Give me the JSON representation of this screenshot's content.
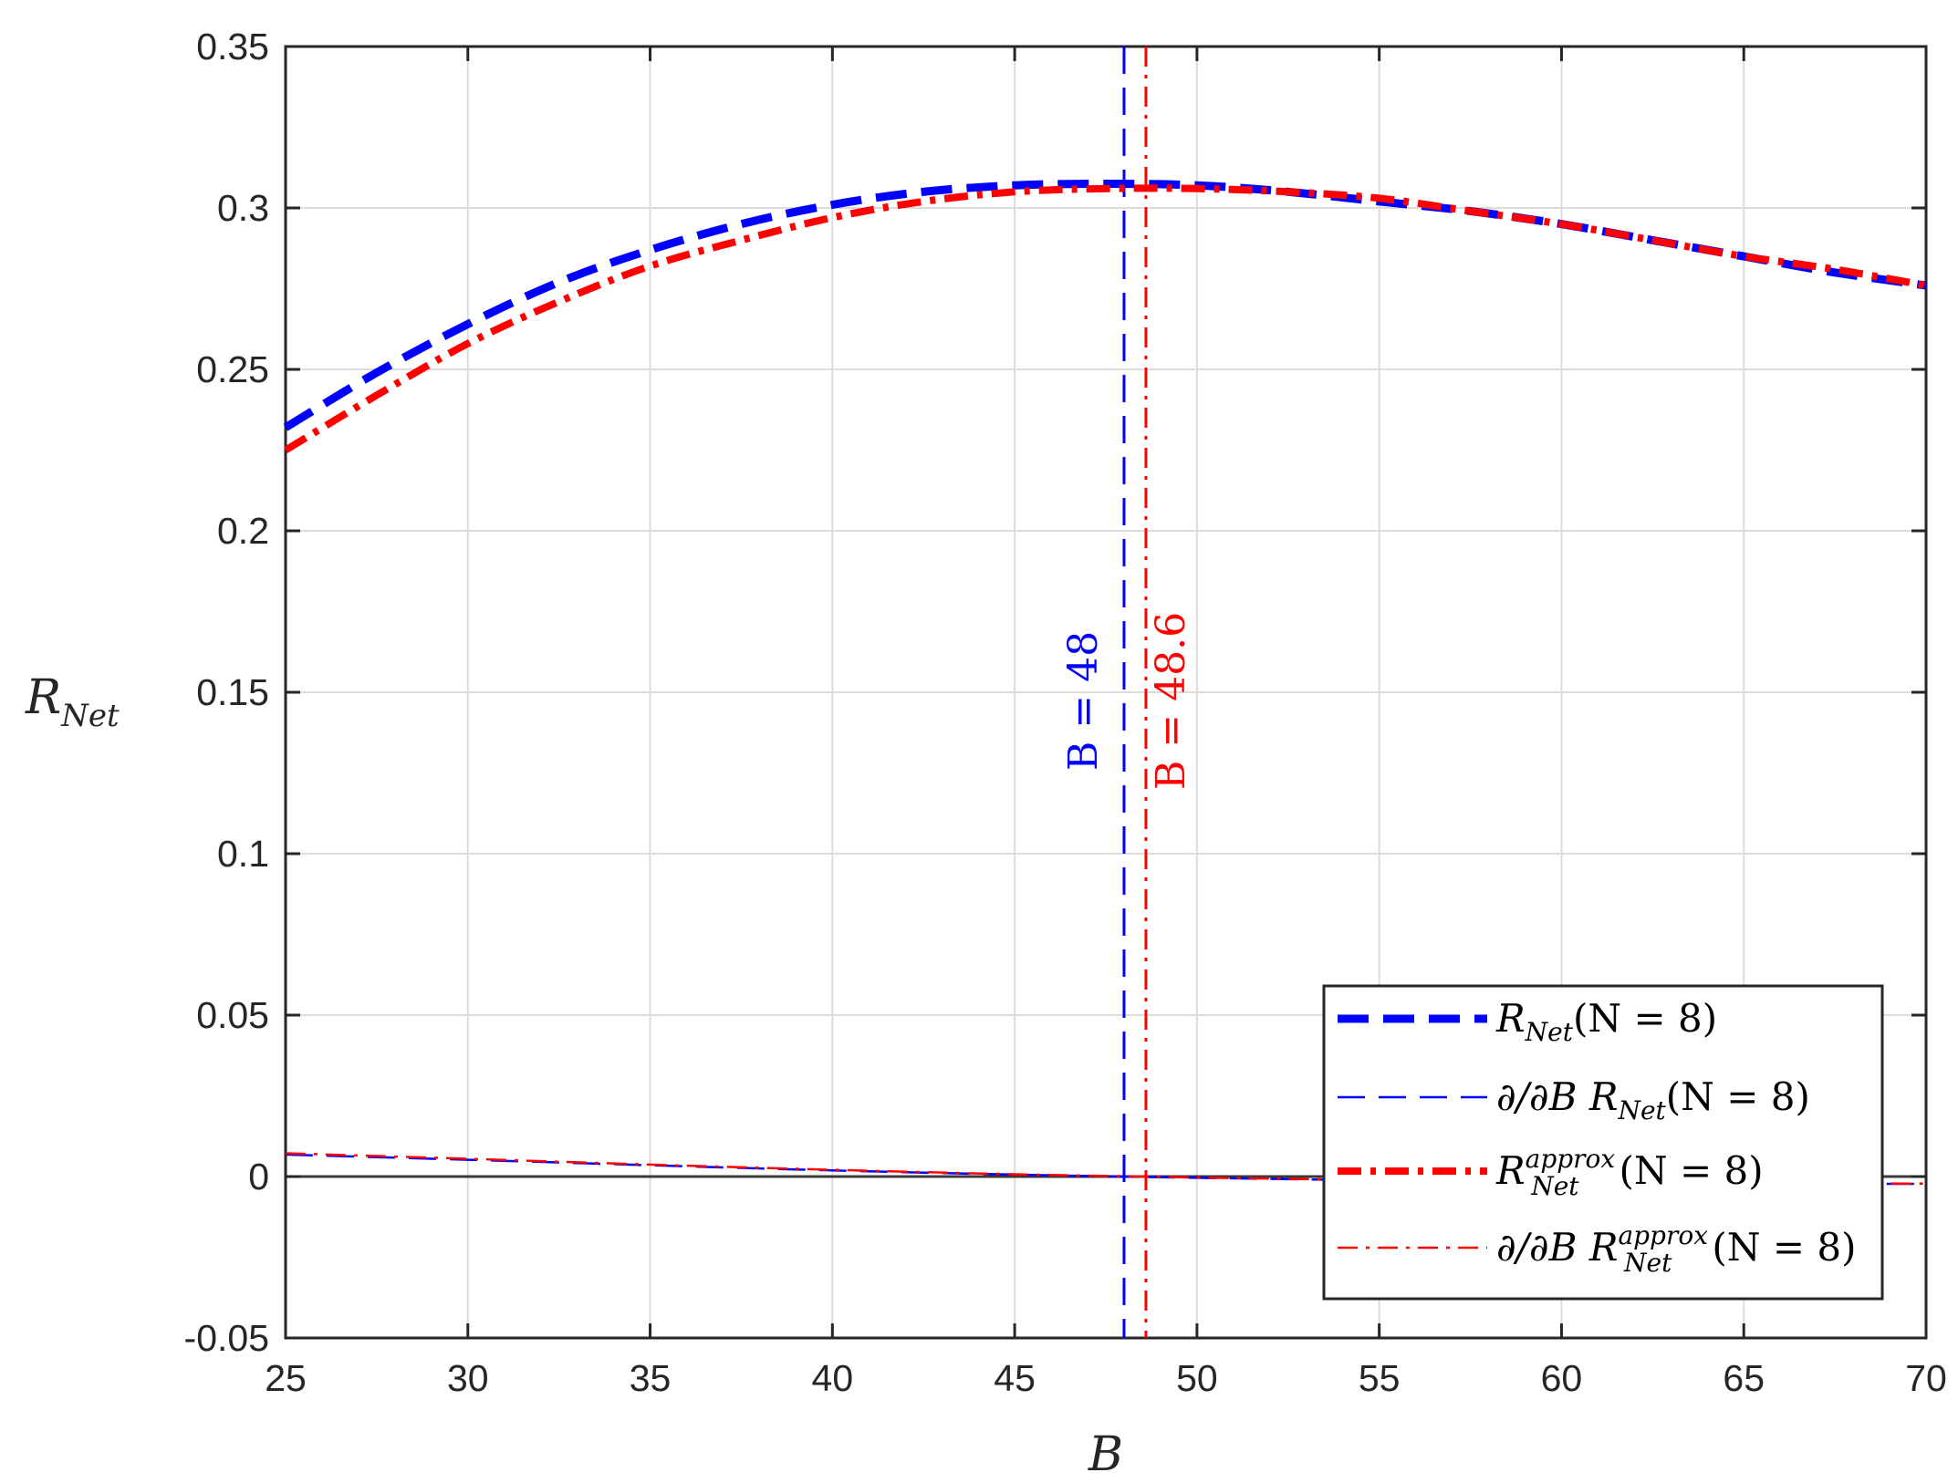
{
  "chart_data": {
    "type": "line",
    "xlabel": "B",
    "ylabel": {
      "main": "R",
      "sub": "Net"
    },
    "xlim": [
      25,
      70
    ],
    "ylim": [
      -0.05,
      0.35
    ],
    "xticks": [
      "25",
      "30",
      "35",
      "40",
      "45",
      "50",
      "55",
      "60",
      "65",
      "70"
    ],
    "yticks": [
      "-0.05",
      "0",
      "0.05",
      "0.1",
      "0.15",
      "0.2",
      "0.25",
      "0.3",
      "0.35"
    ],
    "grid": true,
    "legend_position": "bottom-right",
    "series": [
      {
        "name": "R_Net(N = 8)",
        "color": "#0000ff",
        "style": "thick-dashed",
        "x": [
          25,
          27.5,
          30,
          32.5,
          35,
          37.5,
          40,
          42.5,
          45,
          47.5,
          50,
          52.5,
          55,
          57.5,
          60,
          62.5,
          65,
          67.5,
          70
        ],
        "y": [
          0.232,
          0.249,
          0.264,
          0.277,
          0.287,
          0.295,
          0.301,
          0.305,
          0.307,
          0.3075,
          0.307,
          0.305,
          0.302,
          0.299,
          0.295,
          0.29,
          0.285,
          0.28,
          0.276
        ]
      },
      {
        "name": "∂/∂B R_Net(N = 8)",
        "color": "#0000ff",
        "style": "thin-dashed",
        "x": [
          25,
          30,
          35,
          40,
          45,
          48,
          50,
          55,
          60,
          65,
          70
        ],
        "y": [
          0.0068,
          0.0052,
          0.0035,
          0.0019,
          0.0006,
          0.0,
          -0.0004,
          -0.0012,
          -0.0018,
          -0.0021,
          -0.0023
        ]
      },
      {
        "name": "R_Net^approx(N = 8)",
        "color": "#ff0000",
        "style": "thick-dashdot",
        "x": [
          25,
          27.5,
          30,
          32.5,
          35,
          37.5,
          40,
          42.5,
          45,
          47.5,
          50,
          52.5,
          55,
          57.5,
          60,
          62.5,
          65,
          67.5,
          70
        ],
        "y": [
          0.225,
          0.242,
          0.258,
          0.271,
          0.282,
          0.29,
          0.297,
          0.302,
          0.305,
          0.306,
          0.306,
          0.305,
          0.303,
          0.299,
          0.295,
          0.29,
          0.285,
          0.281,
          0.276
        ]
      },
      {
        "name": "∂/∂B R_Net^approx(N = 8)",
        "color": "#ff0000",
        "style": "thin-dashdot",
        "x": [
          25,
          30,
          35,
          40,
          45,
          48.6,
          50,
          55,
          60,
          65,
          70
        ],
        "y": [
          0.0072,
          0.0055,
          0.0037,
          0.0021,
          0.0007,
          0.0,
          -0.0003,
          -0.0011,
          -0.0017,
          -0.002,
          -0.0022
        ]
      }
    ],
    "vertical_lines": [
      {
        "x": 48,
        "color": "#0000ff",
        "style": "dashed",
        "label": "B = 48"
      },
      {
        "x": 48.6,
        "color": "#ff0000",
        "style": "dashdot",
        "label": "B = 48.6"
      }
    ],
    "legend": [
      {
        "pre": "",
        "main": "R",
        "sub": "Net",
        "sup": "",
        "post": "(N = 8)"
      },
      {
        "pre": "∂/∂B",
        "main": "R",
        "sub": "Net",
        "sup": "",
        "post": "(N = 8)"
      },
      {
        "pre": "",
        "main": "R",
        "sub": "Net",
        "sup": "approx",
        "post": "(N = 8)"
      },
      {
        "pre": "∂/∂B",
        "main": "R",
        "sub": "Net",
        "sup": "approx",
        "post": "(N = 8)"
      }
    ]
  }
}
